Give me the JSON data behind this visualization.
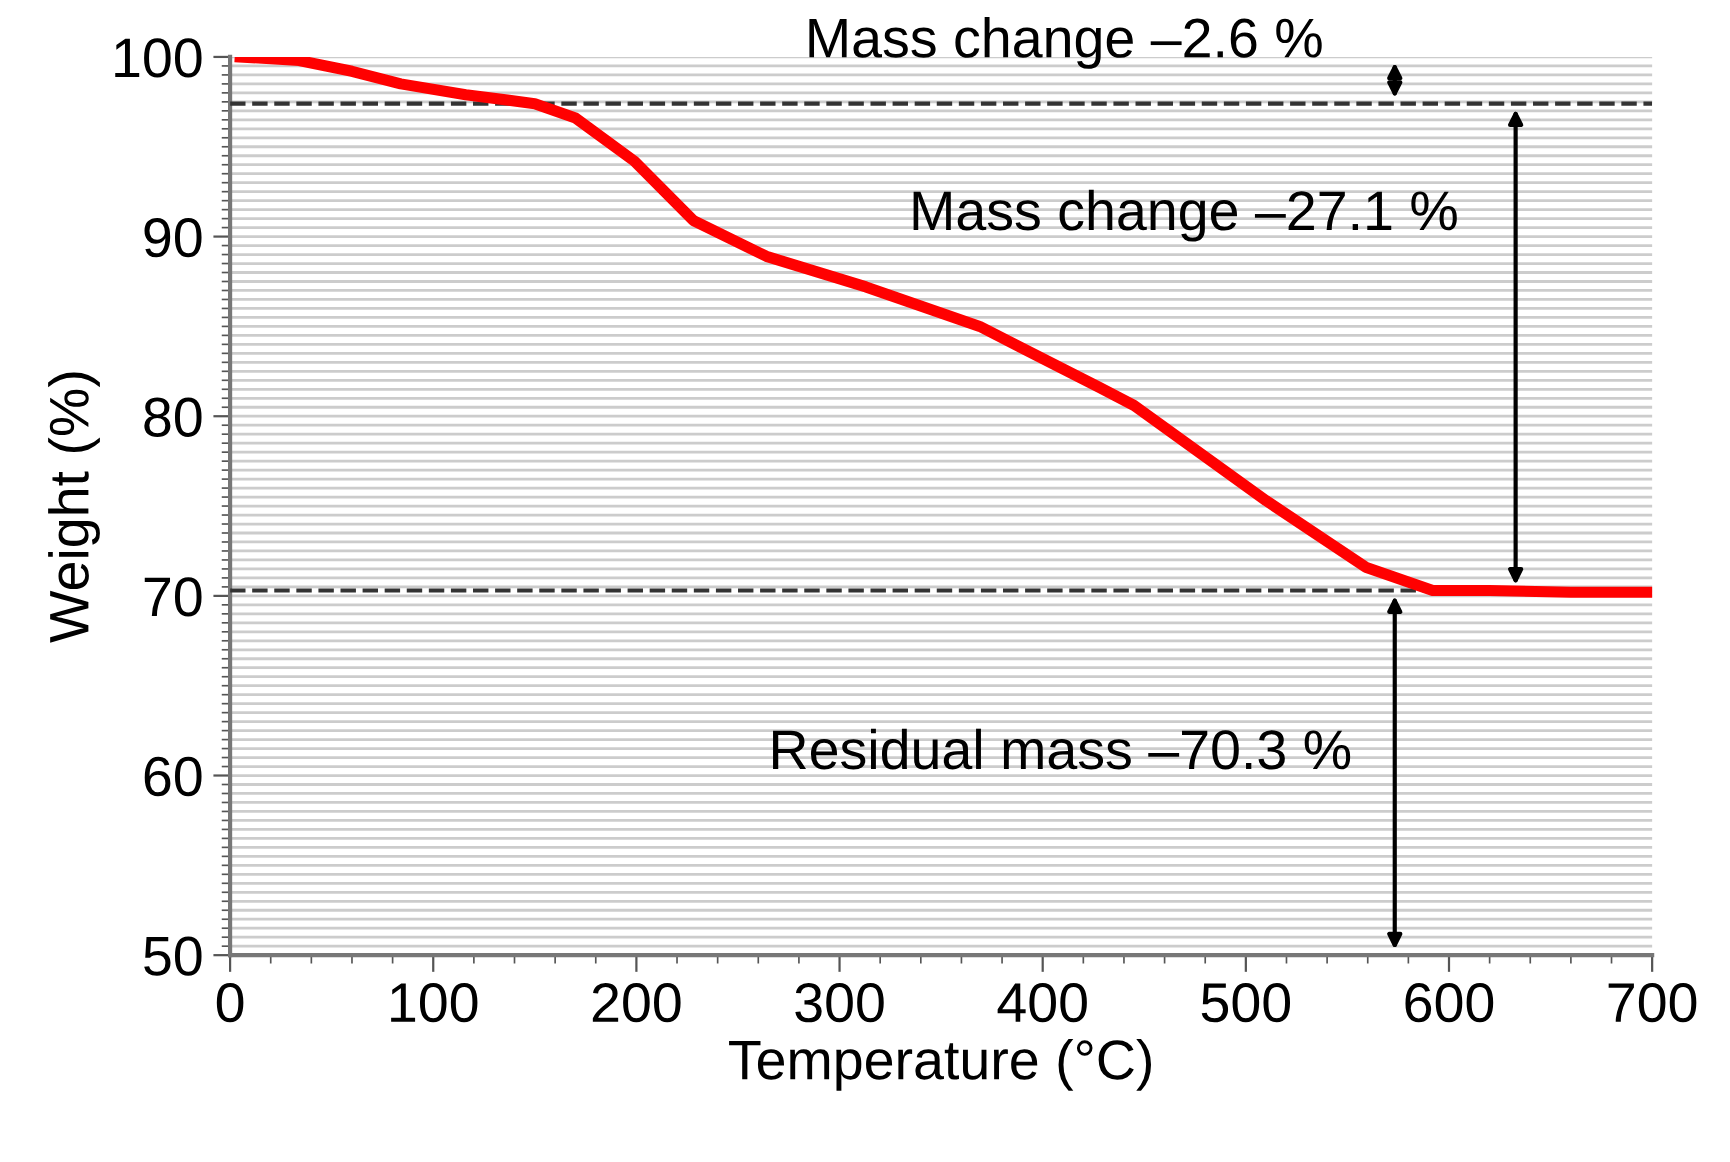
{
  "chart_data": {
    "type": "line",
    "xlabel": "Temperature (°C)",
    "ylabel": "Weight (%)",
    "x": [
      5,
      34,
      60,
      84,
      116,
      150,
      170,
      199,
      228,
      264,
      313,
      369,
      428,
      445,
      510,
      559,
      592,
      620,
      660,
      699
    ],
    "series": [
      {
        "color": "#ff0000",
        "values": [
          100,
          99.8,
          99.2,
          98.5,
          97.9,
          97.4,
          96.6,
          94.2,
          90.9,
          88.9,
          87.2,
          85.0,
          81.6,
          80.6,
          75.3,
          71.6,
          70.3,
          70.3,
          70.2,
          70.2
        ]
      }
    ],
    "xlim": [
      0,
      700
    ],
    "xticks": [
      0,
      100,
      200,
      300,
      400,
      500,
      600,
      700
    ],
    "ylim": [
      50,
      100
    ],
    "yticks": [
      50,
      60,
      70,
      80,
      90,
      100
    ],
    "grid": "y",
    "marker": "none",
    "line_style": "solid",
    "ref_lines": [
      {
        "axis": "y",
        "value": 97.4,
        "color": "#333333",
        "line_style": "dashed"
      },
      {
        "axis": "y",
        "value": 70.3,
        "color": "#333333",
        "line_style": "dashed"
      }
    ],
    "annotations": [
      "Mass change –2.6 %",
      "Mass change –27.1 %",
      "Residual mass –70.3 %"
    ]
  }
}
